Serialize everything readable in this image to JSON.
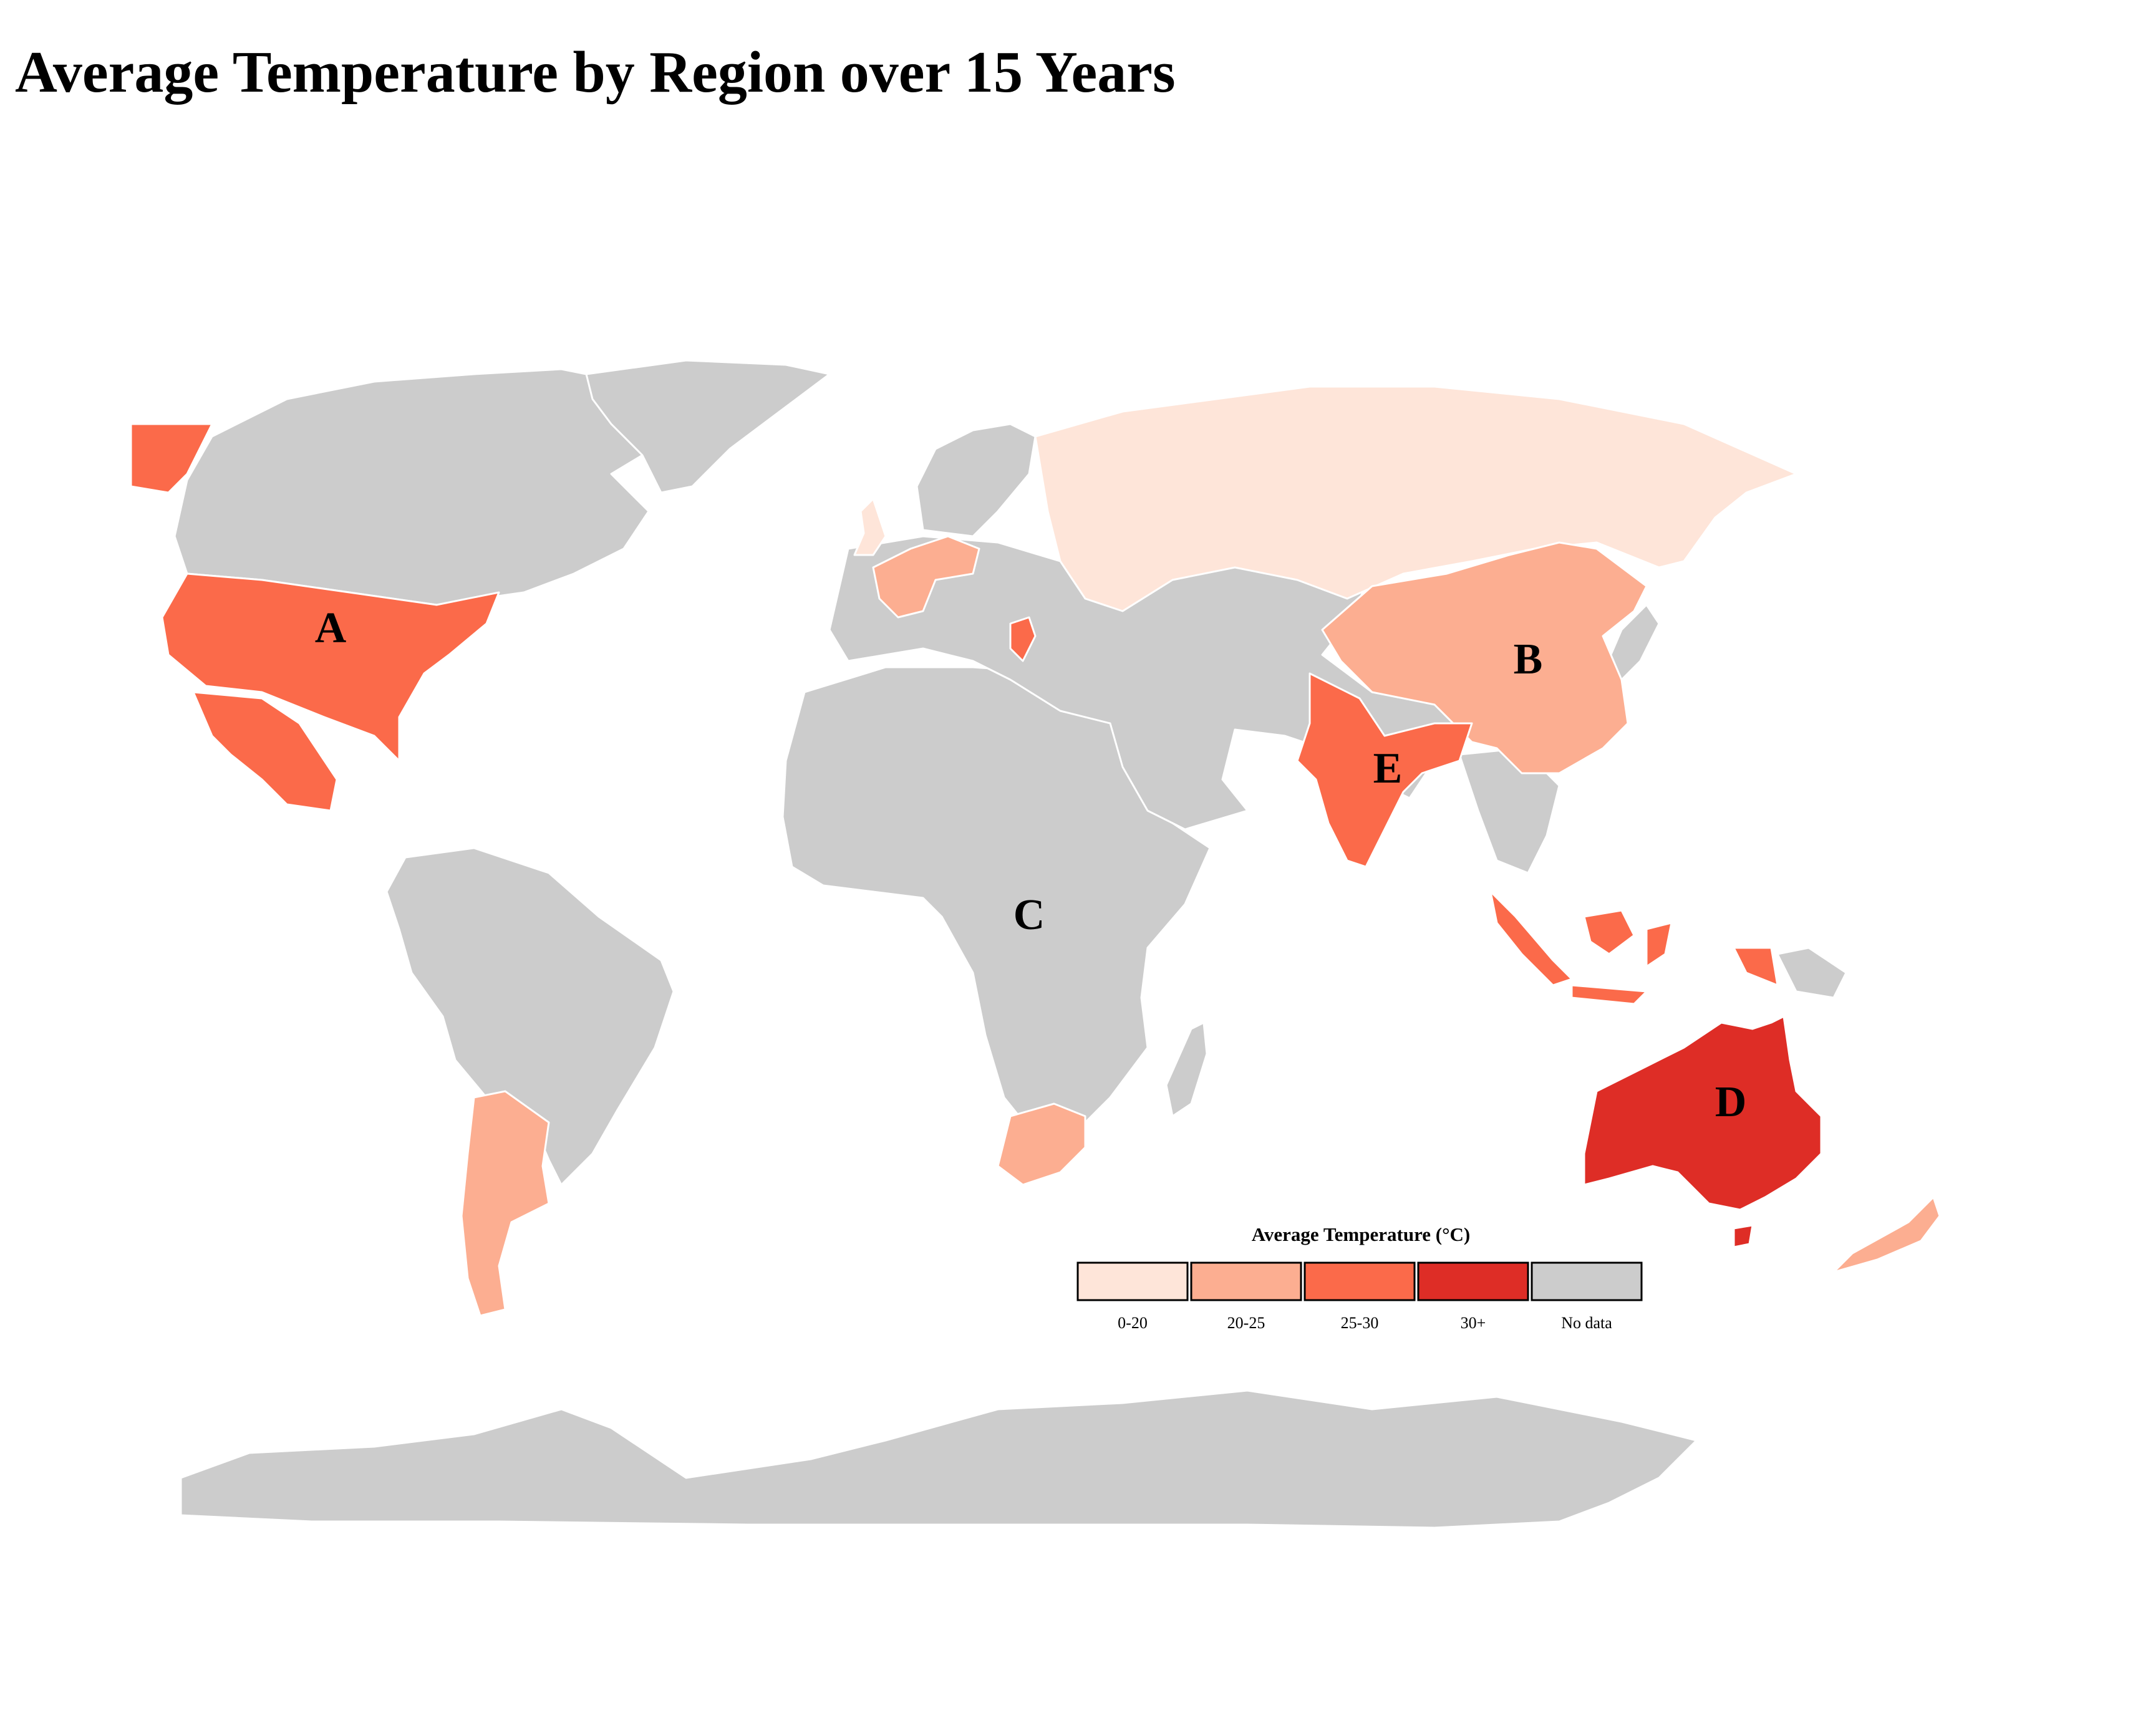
{
  "title": "Average Temperature by Region over 15 Years",
  "colors": {
    "no_data": "#cccccc",
    "range_0_20": "#fee5d9",
    "range_20_25": "#fcae91",
    "range_25_30": "#fb6a4a",
    "range_30_plus": "#de2d26",
    "border": "#ffffff"
  },
  "region_labels": [
    {
      "id": "A",
      "text": "A",
      "region": "United States",
      "bin": "25-30"
    },
    {
      "id": "B",
      "text": "B",
      "region": "China",
      "bin": "20-25"
    },
    {
      "id": "C",
      "text": "C",
      "region": "Central Africa",
      "bin": "No data"
    },
    {
      "id": "D",
      "text": "D",
      "region": "Australia",
      "bin": "30+"
    },
    {
      "id": "E",
      "text": "E",
      "region": "India",
      "bin": "25-30"
    }
  ],
  "legend": {
    "title": "Average Temperature (°C)",
    "items": [
      {
        "label": "0-20",
        "color": "#fee5d9"
      },
      {
        "label": "20-25",
        "color": "#fcae91"
      },
      {
        "label": "25-30",
        "color": "#fb6a4a"
      },
      {
        "label": "30+",
        "color": "#de2d26"
      },
      {
        "label": "No data",
        "color": "#cccccc"
      }
    ]
  }
}
